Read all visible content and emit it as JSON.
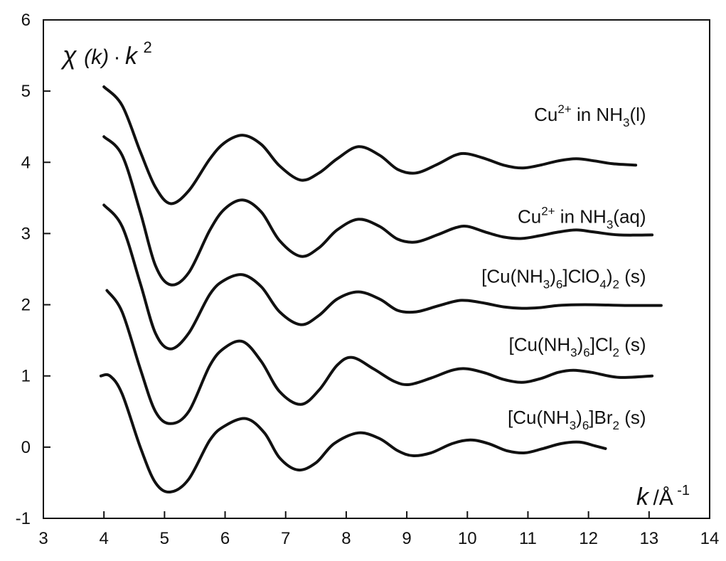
{
  "chart_data": {
    "type": "line",
    "ylabel": "χ (k)·k²",
    "ylabel_parts": {
      "chi": "χ",
      "arg": "(k)",
      "dot": "·",
      "k": "k",
      "exp": "2"
    },
    "xlabel": "k /Å⁻¹",
    "xlabel_parts": {
      "k": "k",
      "unit": "/Å",
      "exp": "-1"
    },
    "xlim": [
      3,
      14
    ],
    "ylim": [
      -1,
      6
    ],
    "xticks": [
      "3",
      "4",
      "5",
      "6",
      "7",
      "8",
      "9",
      "10",
      "11",
      "12",
      "13",
      "14"
    ],
    "yticks": [
      "-1",
      "0",
      "1",
      "2",
      "3",
      "4",
      "5",
      "6"
    ],
    "grid": false,
    "legend": "labels placed at right end of each curve",
    "series": [
      {
        "name": "Cu²⁺ in NH₃(l)",
        "label_parts": [
          "Cu",
          "2+",
          " in NH",
          "3",
          "(l)"
        ],
        "x": [
          4.0,
          4.3,
          4.6,
          4.85,
          5.1,
          5.4,
          5.75,
          6.0,
          6.3,
          6.6,
          6.9,
          7.25,
          7.55,
          7.85,
          8.2,
          8.55,
          8.85,
          9.15,
          9.5,
          9.8,
          10.0,
          10.3,
          10.6,
          10.9,
          11.2,
          11.5,
          11.8,
          12.1,
          12.4,
          12.78
        ],
        "y": [
          5.06,
          4.8,
          4.15,
          3.65,
          3.42,
          3.6,
          4.05,
          4.28,
          4.38,
          4.25,
          3.95,
          3.75,
          3.85,
          4.05,
          4.22,
          4.1,
          3.9,
          3.85,
          3.97,
          4.1,
          4.12,
          4.05,
          3.96,
          3.92,
          3.96,
          4.02,
          4.05,
          4.02,
          3.98,
          3.96
        ]
      },
      {
        "name": "Cu²⁺ in NH₃(aq)",
        "label_parts": [
          "Cu",
          "2+",
          " in NH",
          "3",
          "(aq)"
        ],
        "x": [
          4.0,
          4.3,
          4.6,
          4.85,
          5.1,
          5.4,
          5.75,
          6.0,
          6.3,
          6.6,
          6.9,
          7.25,
          7.55,
          7.85,
          8.2,
          8.55,
          8.85,
          9.15,
          9.5,
          9.8,
          10.0,
          10.3,
          10.6,
          10.9,
          11.2,
          11.5,
          11.8,
          12.1,
          12.5,
          13.05
        ],
        "y": [
          4.36,
          4.1,
          3.3,
          2.55,
          2.28,
          2.45,
          3.05,
          3.35,
          3.47,
          3.3,
          2.9,
          2.68,
          2.8,
          3.05,
          3.2,
          3.1,
          2.92,
          2.88,
          2.98,
          3.08,
          3.1,
          3.02,
          2.95,
          2.93,
          2.97,
          3.02,
          3.05,
          3.02,
          2.98,
          2.98
        ]
      },
      {
        "name": "[Cu(NH₃)₆]ClO₄)₂ (s)",
        "label_parts": [
          "[Cu(NH",
          "3",
          ")",
          "6",
          "]ClO",
          "4",
          ")",
          "2",
          " (s)"
        ],
        "x": [
          4.0,
          4.3,
          4.6,
          4.85,
          5.1,
          5.4,
          5.75,
          6.0,
          6.3,
          6.6,
          6.9,
          7.25,
          7.55,
          7.85,
          8.2,
          8.55,
          8.85,
          9.15,
          9.5,
          9.8,
          10.0,
          10.3,
          10.6,
          10.9,
          11.2,
          11.5,
          11.8,
          12.1,
          12.6,
          13.2
        ],
        "y": [
          3.4,
          3.1,
          2.3,
          1.6,
          1.38,
          1.6,
          2.15,
          2.35,
          2.42,
          2.25,
          1.9,
          1.72,
          1.85,
          2.08,
          2.18,
          2.08,
          1.92,
          1.9,
          1.98,
          2.05,
          2.06,
          2.02,
          1.97,
          1.95,
          1.96,
          1.99,
          2.0,
          2.0,
          1.99,
          1.99
        ]
      },
      {
        "name": "[Cu(NH₃)₆]Cl₂ (s)",
        "label_parts": [
          "[Cu(NH",
          "3",
          ")",
          "6",
          "]Cl",
          "2",
          " (s)"
        ],
        "x": [
          4.05,
          4.3,
          4.6,
          4.85,
          5.1,
          5.4,
          5.75,
          6.0,
          6.3,
          6.6,
          6.9,
          7.25,
          7.55,
          7.85,
          8.1,
          8.45,
          8.8,
          9.05,
          9.4,
          9.75,
          10.0,
          10.3,
          10.6,
          10.9,
          11.2,
          11.5,
          11.75,
          12.05,
          12.5,
          13.05
        ],
        "y": [
          2.2,
          1.9,
          1.1,
          0.5,
          0.33,
          0.5,
          1.15,
          1.4,
          1.48,
          1.2,
          0.78,
          0.6,
          0.8,
          1.15,
          1.26,
          1.1,
          0.92,
          0.88,
          0.97,
          1.08,
          1.1,
          1.04,
          0.95,
          0.91,
          0.96,
          1.05,
          1.08,
          1.05,
          0.98,
          1.0
        ]
      },
      {
        "name": "[Cu(NH₃)₆]Br₂ (s)",
        "label_parts": [
          "[Cu(NH",
          "3",
          ")",
          "6",
          "]Br",
          "2",
          " (s)"
        ],
        "x": [
          3.95,
          4.1,
          4.3,
          4.6,
          4.85,
          5.1,
          5.4,
          5.75,
          6.0,
          6.35,
          6.65,
          6.9,
          7.2,
          7.5,
          7.8,
          8.2,
          8.55,
          8.85,
          9.1,
          9.4,
          9.75,
          10.05,
          10.35,
          10.65,
          10.95,
          11.25,
          11.55,
          11.85,
          12.1,
          12.28
        ],
        "y": [
          1.0,
          1.0,
          0.75,
          0.0,
          -0.5,
          -0.63,
          -0.45,
          0.1,
          0.3,
          0.4,
          0.2,
          -0.15,
          -0.32,
          -0.22,
          0.05,
          0.2,
          0.12,
          -0.05,
          -0.12,
          -0.08,
          0.05,
          0.1,
          0.05,
          -0.05,
          -0.08,
          -0.02,
          0.05,
          0.07,
          0.02,
          -0.02
        ]
      }
    ]
  }
}
